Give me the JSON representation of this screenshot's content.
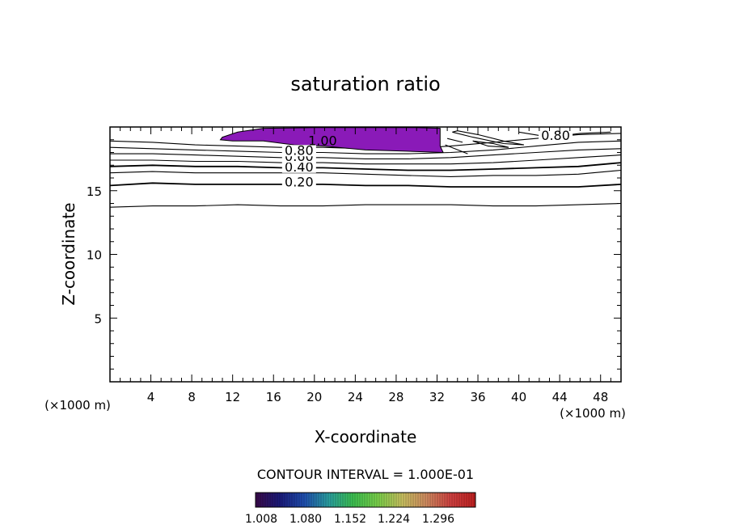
{
  "chart_data": {
    "type": "contour",
    "title": "saturation ratio",
    "xlabel": "X-coordinate",
    "ylabel": "Z-coordinate",
    "x_unit": "(×1000 m)",
    "y_unit": "(×1000 m)",
    "xlim": [
      0,
      50
    ],
    "ylim": [
      0,
      20
    ],
    "x_ticks": [
      "4",
      "8",
      "12",
      "16",
      "20",
      "24",
      "28",
      "32",
      "36",
      "40",
      "44",
      "48"
    ],
    "y_ticks": [
      "5",
      "10",
      "15"
    ],
    "contour_interval_text": "CONTOUR INTERVAL = 1.000E-01",
    "contour_labels": [
      "0.20",
      "0.40",
      "0.60",
      "0.80",
      "1.00",
      "0.80"
    ],
    "shaded_region": {
      "description_value": "> 1.00",
      "color": "#8a1ab8"
    },
    "colorbar": {
      "tick_labels": [
        "1.008",
        "1.080",
        "1.152",
        "1.224",
        "1.296"
      ],
      "colors": [
        "#3a0a4a",
        "#1a1a7a",
        "#1f4fb0",
        "#2aa0a0",
        "#3cc050",
        "#7ad04a",
        "#c8c060",
        "#d08a60",
        "#d04040",
        "#c02020"
      ]
    },
    "contours": [
      {
        "level": 0.1,
        "z": [
          13.7,
          13.8,
          13.8,
          13.9,
          13.8,
          13.8,
          13.9,
          13.9,
          13.9,
          13.8,
          13.8,
          13.9,
          14.0
        ]
      },
      {
        "level": 0.2,
        "z": [
          15.4,
          15.6,
          15.5,
          15.5,
          15.5,
          15.5,
          15.4,
          15.4,
          15.3,
          15.3,
          15.3,
          15.3,
          15.5
        ]
      },
      {
        "level": 0.3,
        "z": [
          16.4,
          16.5,
          16.4,
          16.4,
          16.4,
          16.4,
          16.3,
          16.2,
          16.1,
          16.2,
          16.2,
          16.3,
          16.6
        ]
      },
      {
        "level": 0.4,
        "z": [
          16.9,
          17.0,
          16.9,
          16.9,
          16.8,
          16.8,
          16.7,
          16.6,
          16.6,
          16.7,
          16.8,
          16.9,
          17.2
        ]
      },
      {
        "level": 0.5,
        "z": [
          17.4,
          17.4,
          17.3,
          17.3,
          17.2,
          17.2,
          17.1,
          17.1,
          17.1,
          17.2,
          17.4,
          17.6,
          17.8
        ]
      },
      {
        "level": 0.6,
        "z": [
          17.9,
          17.9,
          17.8,
          17.7,
          17.6,
          17.6,
          17.5,
          17.5,
          17.6,
          17.8,
          18.0,
          18.2,
          18.3
        ]
      },
      {
        "level": 0.7,
        "z": [
          18.4,
          18.3,
          18.2,
          18.1,
          18.0,
          18.0,
          17.9,
          17.9,
          18.0,
          18.2,
          18.5,
          18.8,
          18.9
        ]
      },
      {
        "level": 0.8,
        "z": [
          18.9,
          18.8,
          18.6,
          18.5,
          18.4,
          18.4,
          18.3,
          18.3,
          18.5,
          18.8,
          19.1,
          19.4,
          19.5
        ]
      }
    ]
  }
}
